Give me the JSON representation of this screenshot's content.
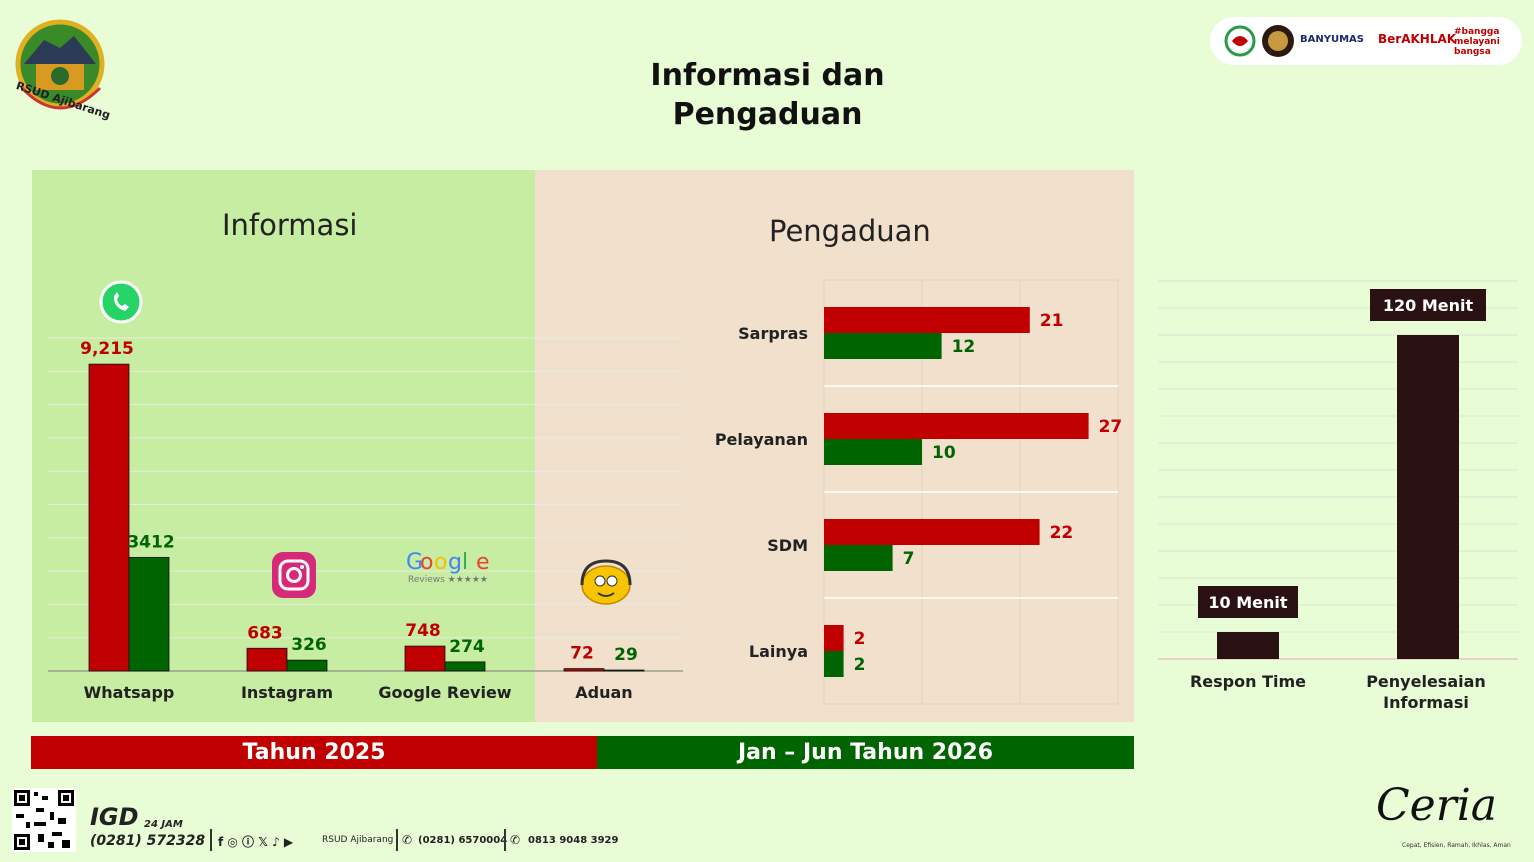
{
  "page": {
    "title_line1": "Informasi dan",
    "title_line2": "Pengaduan"
  },
  "header": {
    "logo_text": "RSUD Ajibarang",
    "strip_banyumas": "BANYUMAS",
    "strip_berakhlak": "BerAKHLAK",
    "strip_bangga": "#bangga melayani bangsa"
  },
  "panels": {
    "informasi_title": "Informasi",
    "pengaduan_title": "Pengaduan"
  },
  "legend": {
    "tahun_2025": "Tahun 2025",
    "tahun_2026": "Jan – Jun Tahun 2026"
  },
  "colors": {
    "series_2025": "#c00000",
    "series_2026": "#006400",
    "time_bar": "#2a1114"
  },
  "footer": {
    "igd_label": "IGD",
    "igd_24": "24 JAM",
    "igd_phone": "(0281) 572328",
    "social_handle": "RSUD Ajibarang",
    "phone2": "(0281) 6570004",
    "whatsapp": "0813 9048 3929",
    "ceria_word": "Ceria",
    "ceria_tagline": "Cepat, Efisien, Ramah, Ikhlas, Aman"
  },
  "chart_data": [
    {
      "type": "bar",
      "title": "Informasi",
      "categories": [
        "Whatsapp",
        "Instagram",
        "Google Review",
        "Aduan"
      ],
      "series": [
        {
          "name": "Tahun 2025",
          "values": [
            9215,
            683,
            748,
            72
          ],
          "labels": [
            "9,215",
            "683",
            "748",
            "72"
          ]
        },
        {
          "name": "Jan – Jun Tahun 2026",
          "values": [
            3412,
            326,
            274,
            29
          ],
          "labels": [
            "3412",
            "326",
            "274",
            "29"
          ]
        }
      ],
      "icons": [
        "whatsapp-icon",
        "instagram-icon",
        "google-reviews-icon",
        "emoji-headset-icon"
      ],
      "ylim": [
        0,
        10000
      ],
      "grid": true
    },
    {
      "type": "bar",
      "orientation": "horizontal",
      "title": "Pengaduan",
      "categories": [
        "Sarpras",
        "Pelayanan",
        "SDM",
        "Lainya"
      ],
      "series": [
        {
          "name": "Tahun 2025",
          "values": [
            21,
            27,
            22,
            2
          ]
        },
        {
          "name": "Jan – Jun Tahun 2026",
          "values": [
            12,
            10,
            7,
            2
          ]
        }
      ],
      "xlim": [
        0,
        30
      ],
      "grid": true
    },
    {
      "type": "bar",
      "categories": [
        "Respon Time",
        "Penyelesaian Informasi"
      ],
      "values": [
        10,
        120
      ],
      "labels": [
        "10 Menit",
        "120 Menit"
      ],
      "ylim": [
        0,
        140
      ],
      "grid": true
    }
  ]
}
